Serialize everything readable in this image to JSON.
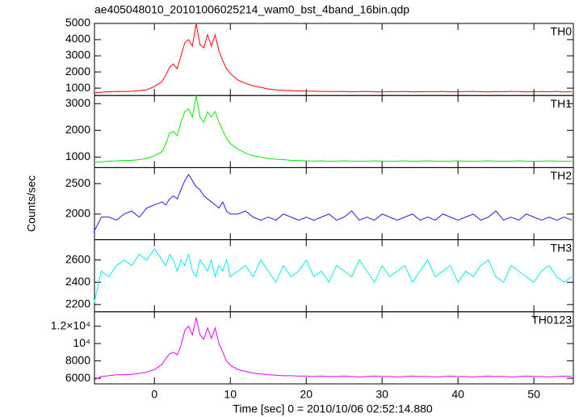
{
  "title": "ae405048010_20101006025214_wam0_bst_4band_16bin.qdp",
  "x_label": "Time [sec] 0 = 2010/10/06 02:52:14.880",
  "y_label": "Counts/sec",
  "chart_data": {
    "type": "line",
    "x": [
      -8,
      -7,
      -6,
      -5,
      -4,
      -3,
      -2,
      -1,
      0,
      1,
      1.5,
      2,
      2.5,
      3,
      3.5,
      4,
      4.5,
      5,
      5.5,
      6,
      6.5,
      7,
      7.5,
      8,
      8.5,
      9,
      9.5,
      10,
      11,
      12,
      13,
      14,
      15,
      16,
      17,
      18,
      19,
      20,
      21,
      22,
      23,
      24,
      25,
      26,
      27,
      28,
      29,
      30,
      31,
      32,
      33,
      34,
      35,
      36,
      37,
      38,
      39,
      40,
      41,
      42,
      43,
      44,
      45,
      46,
      47,
      48,
      49,
      50,
      51,
      52,
      53,
      54,
      55
    ],
    "xlim": [
      -7.9,
      55.2
    ],
    "xticks": [
      0,
      10,
      20,
      30,
      40,
      50
    ],
    "series": [
      {
        "name": "TH0",
        "color": "#ff0000",
        "ylim": [
          545,
          5000
        ],
        "yticks": [
          1000,
          2000,
          3000,
          4000,
          5000
        ],
        "values": [
          700,
          750,
          780,
          800,
          790,
          810,
          850,
          900,
          1100,
          1400,
          1800,
          2300,
          2500,
          2200,
          3000,
          3800,
          4000,
          3600,
          5000,
          3700,
          3500,
          4300,
          3600,
          4300,
          3300,
          2700,
          2200,
          1900,
          1500,
          1300,
          1150,
          1050,
          950,
          900,
          870,
          850,
          830,
          820,
          810,
          800,
          800,
          790,
          800,
          780,
          790,
          800,
          780,
          770,
          790,
          780,
          800,
          770,
          780,
          790,
          780,
          800,
          770,
          780,
          790,
          800,
          780,
          770,
          790,
          780,
          800,
          790,
          770,
          780,
          790,
          780,
          800,
          770,
          780
        ]
      },
      {
        "name": "TH1",
        "color": "#00ee00",
        "ylim": [
          606,
          3303
        ],
        "yticks": [
          1000,
          2000,
          3000
        ],
        "values": [
          800,
          820,
          850,
          860,
          870,
          880,
          900,
          950,
          1050,
          1200,
          1500,
          1900,
          1950,
          1800,
          2300,
          2700,
          2800,
          2500,
          3300,
          2500,
          2300,
          2700,
          2500,
          2700,
          2300,
          2000,
          1700,
          1500,
          1300,
          1150,
          1050,
          1000,
          950,
          920,
          900,
          880,
          870,
          860,
          850,
          860,
          840,
          850,
          860,
          850,
          840,
          850,
          860,
          850,
          840,
          850,
          860,
          840,
          850,
          860,
          850,
          840,
          850,
          860,
          850,
          840,
          850,
          860,
          850,
          840,
          850,
          860,
          850,
          840,
          850,
          860,
          850,
          840,
          850
        ]
      },
      {
        "name": "TH2",
        "color": "#2222dd",
        "ylim": [
          1579,
          2763
        ],
        "yticks": [
          2000,
          2500
        ],
        "values": [
          1700,
          1950,
          1950,
          1900,
          2000,
          2050,
          1950,
          2100,
          2150,
          2200,
          2150,
          2250,
          2300,
          2250,
          2400,
          2550,
          2650,
          2550,
          2450,
          2400,
          2300,
          2250,
          2200,
          2150,
          2100,
          2200,
          2050,
          2000,
          2000,
          2050,
          1950,
          1900,
          1950,
          1900,
          2000,
          1950,
          1900,
          1950,
          1900,
          1950,
          2000,
          1900,
          1950,
          2050,
          1900,
          1950,
          1900,
          2000,
          1950,
          1900,
          1950,
          2000,
          1900,
          1950,
          1900,
          2000,
          1950,
          1900,
          1950,
          2000,
          1900,
          1950,
          2050,
          1900,
          1950,
          1900,
          2000,
          1950,
          1900,
          1950,
          1900,
          1950,
          1900
        ]
      },
      {
        "name": "TH3",
        "color": "#00eeee",
        "ylim": [
          2135,
          2782
        ],
        "yticks": [
          2200,
          2400,
          2600
        ],
        "values": [
          2200,
          2500,
          2450,
          2550,
          2600,
          2550,
          2650,
          2600,
          2700,
          2600,
          2550,
          2650,
          2600,
          2500,
          2600,
          2550,
          2650,
          2500,
          2450,
          2600,
          2550,
          2500,
          2600,
          2450,
          2550,
          2500,
          2600,
          2450,
          2500,
          2550,
          2450,
          2600,
          2500,
          2400,
          2550,
          2450,
          2500,
          2600,
          2450,
          2500,
          2400,
          2550,
          2500,
          2450,
          2600,
          2500,
          2400,
          2550,
          2450,
          2500,
          2550,
          2400,
          2500,
          2600,
          2450,
          2500,
          2550,
          2400,
          2500,
          2450,
          2550,
          2600,
          2450,
          2400,
          2550,
          2500,
          2450,
          2400,
          2500,
          2550,
          2450,
          2400,
          2450
        ]
      },
      {
        "name": "TH0123",
        "color": "#ee00ee",
        "ylim": [
          5355,
          13660
        ],
        "yticks": [
          6000,
          8000,
          {
            "value": 10000,
            "label": "10⁴"
          },
          {
            "value": 12000,
            "label": "1.2×10⁴"
          }
        ],
        "values": [
          5800,
          6200,
          6300,
          6400,
          6400,
          6450,
          6550,
          6700,
          7000,
          7600,
          8300,
          8800,
          9000,
          8700,
          9800,
          11500,
          12000,
          11000,
          13000,
          11000,
          10500,
          11800,
          10600,
          11800,
          10000,
          9000,
          8000,
          7500,
          7000,
          6800,
          6600,
          6500,
          6400,
          6350,
          6300,
          6300,
          6250,
          6250,
          6200,
          6250,
          6200,
          6200,
          6250,
          6200,
          6150,
          6200,
          6250,
          6200,
          6200,
          6150,
          6200,
          6250,
          6200,
          6200,
          6150,
          6200,
          6250,
          6200,
          6200,
          6150,
          6200,
          6250,
          6200,
          6200,
          6150,
          6200,
          6250,
          6200,
          6200,
          6150,
          6200,
          6250,
          6200
        ]
      }
    ]
  }
}
